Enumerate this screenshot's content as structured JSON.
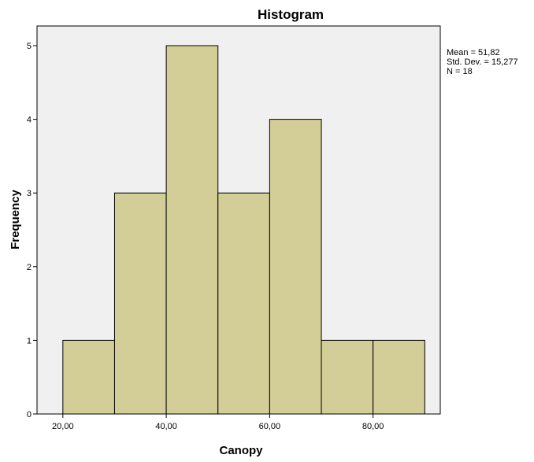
{
  "chart_data": {
    "type": "bar",
    "title": "Histogram",
    "xlabel": "Canopy",
    "ylabel": "Frequency",
    "bins": [
      {
        "from": 20,
        "to": 30,
        "count": 1
      },
      {
        "from": 30,
        "to": 40,
        "count": 3
      },
      {
        "from": 40,
        "to": 50,
        "count": 5
      },
      {
        "from": 50,
        "to": 60,
        "count": 3
      },
      {
        "from": 60,
        "to": 70,
        "count": 4
      },
      {
        "from": 70,
        "to": 80,
        "count": 1
      },
      {
        "from": 80,
        "to": 90,
        "count": 1
      }
    ],
    "xlim": [
      15,
      93
    ],
    "ylim": [
      0,
      5
    ],
    "x_ticks": [
      {
        "value": 20,
        "label": "20,00"
      },
      {
        "value": 40,
        "label": "40,00"
      },
      {
        "value": 60,
        "label": "60,00"
      },
      {
        "value": 80,
        "label": "80,00"
      }
    ],
    "y_ticks": [
      {
        "value": 0,
        "label": "0"
      },
      {
        "value": 1,
        "label": "1"
      },
      {
        "value": 2,
        "label": "2"
      },
      {
        "value": 3,
        "label": "3"
      },
      {
        "value": 4,
        "label": "4"
      },
      {
        "value": 5,
        "label": "5"
      }
    ],
    "stats": {
      "mean": "Mean = 51,82",
      "std_dev": "Std. Dev. = 15,277",
      "n": "N = 18"
    },
    "grid": false,
    "colors": {
      "plot_background": "#f0f0f0",
      "bar_fill": "#d3ce97",
      "bar_stroke": "#000000"
    }
  }
}
